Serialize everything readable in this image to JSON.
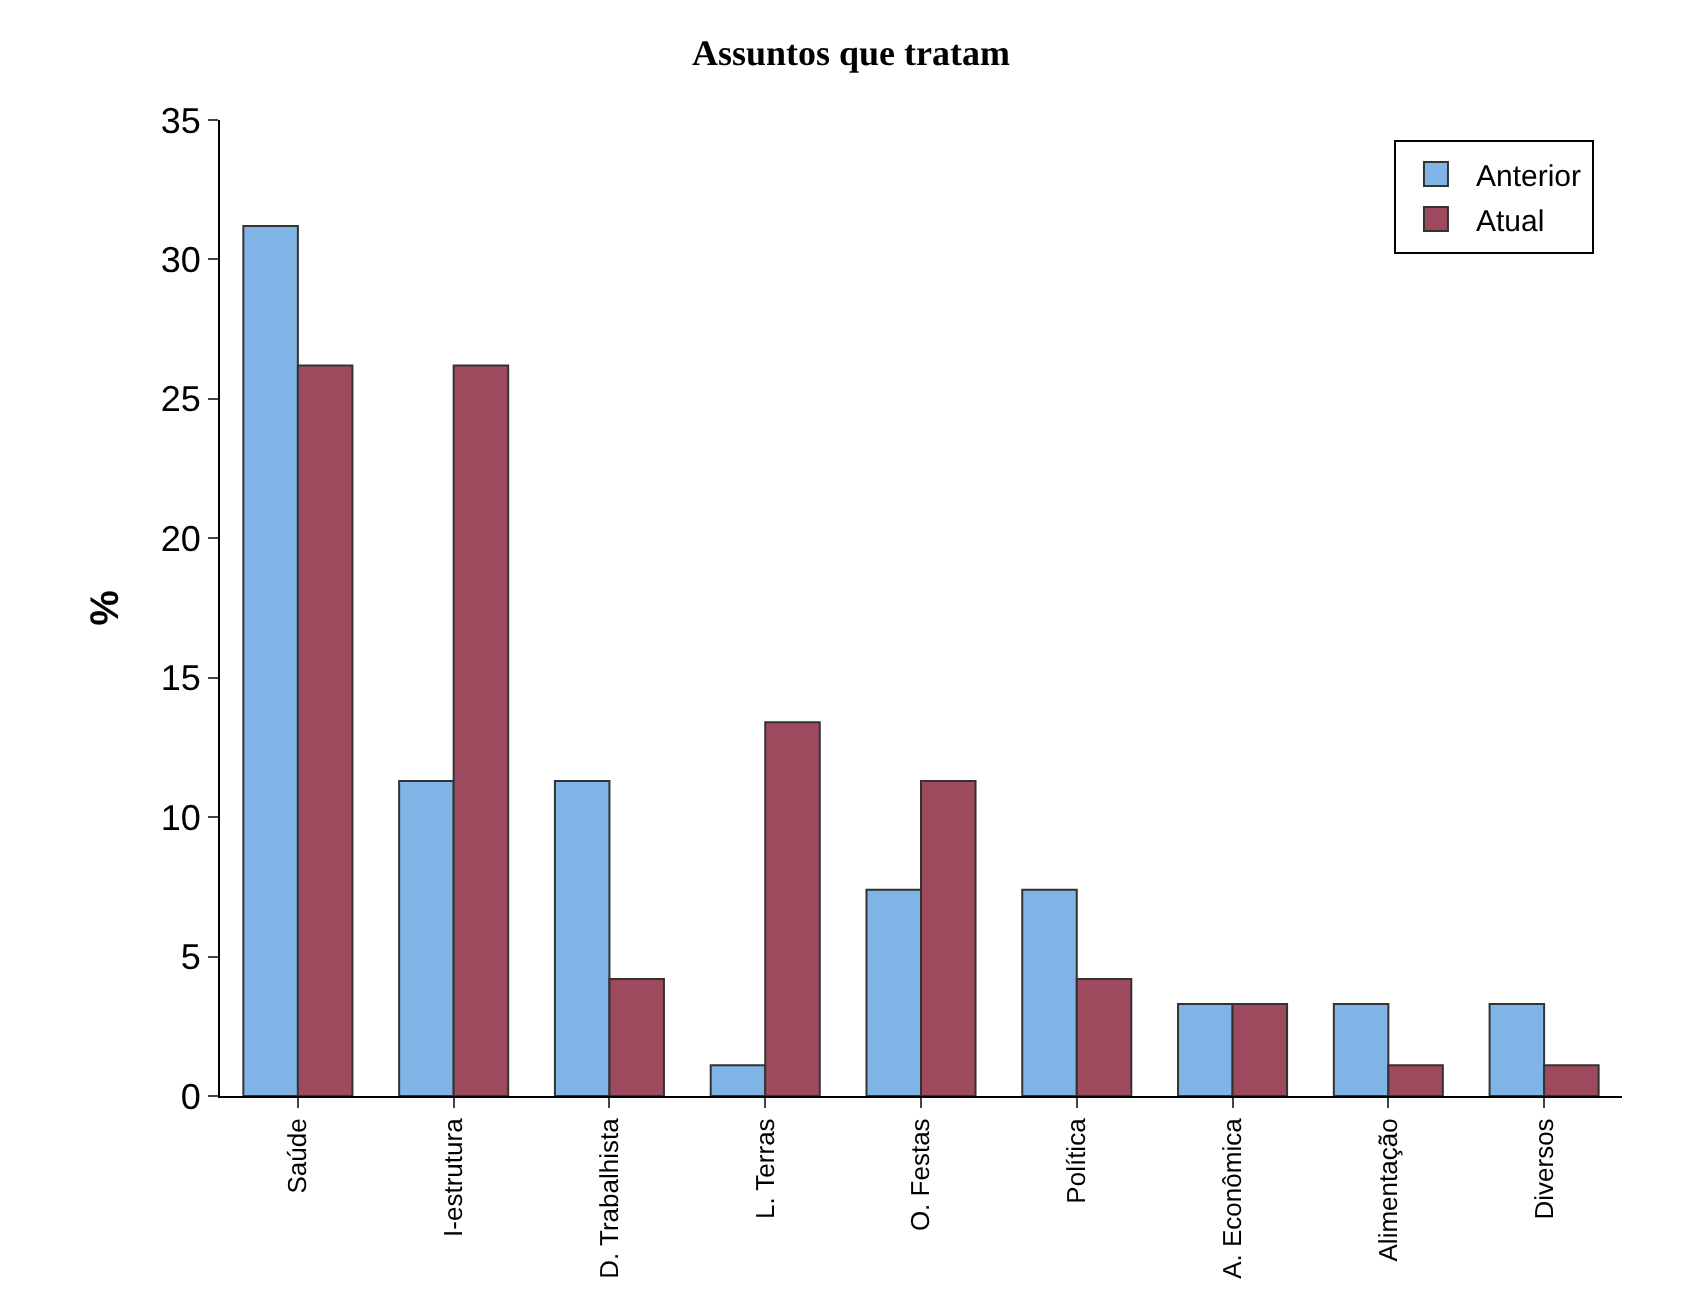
{
  "chart_data": {
    "type": "bar",
    "title": "Assuntos que tratam",
    "ylabel": "%",
    "categories": [
      "Saúde",
      "I-estrutura",
      "D. Trabalhista",
      "L. Terras",
      "O. Festas",
      "Política",
      "A. Econômica",
      "Alimentação",
      "Diversos"
    ],
    "series": [
      {
        "name": "Anterior",
        "color": "#80b4e6",
        "values": [
          31.2,
          11.3,
          11.3,
          1.1,
          7.4,
          7.4,
          3.3,
          3.3,
          3.3
        ]
      },
      {
        "name": "Atual",
        "color": "#9e4a5e",
        "values": [
          26.2,
          26.2,
          4.2,
          13.4,
          11.3,
          4.2,
          3.3,
          1.1,
          1.1
        ]
      }
    ],
    "ylim": [
      0,
      35
    ],
    "yticks": [
      0,
      5,
      10,
      15,
      20,
      25,
      30,
      35
    ],
    "grid": false,
    "legend": "top right"
  }
}
